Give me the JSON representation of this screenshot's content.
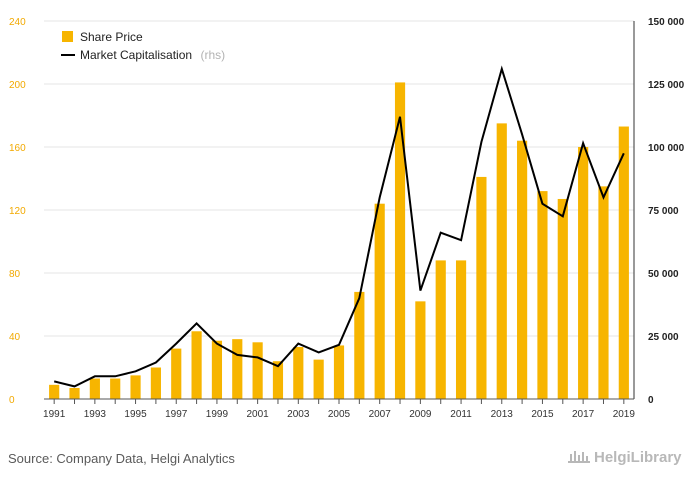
{
  "chart_data": {
    "type": "bar",
    "title": "",
    "xlabel": "",
    "ylabel": "",
    "categories": [
      "1991",
      "1992",
      "1993",
      "1994",
      "1995",
      "1996",
      "1997",
      "1998",
      "1999",
      "2000",
      "2001",
      "2002",
      "2003",
      "2004",
      "2005",
      "2006",
      "2007",
      "2008",
      "2009",
      "2010",
      "2011",
      "2012",
      "2013",
      "2014",
      "2015",
      "2016",
      "2017",
      "2018",
      "2019"
    ],
    "x_tick_labels": [
      "1991",
      "1993",
      "1995",
      "1997",
      "1999",
      "2001",
      "2003",
      "2005",
      "2007",
      "2009",
      "2011",
      "2013",
      "2015",
      "2017",
      "2019"
    ],
    "series": [
      {
        "name": "Share Price",
        "type": "bar",
        "axis": "left",
        "color": "#f7b500",
        "values": [
          9,
          7,
          13,
          13,
          15,
          20,
          32,
          43,
          37,
          38,
          36,
          24,
          33,
          25,
          34,
          68,
          124,
          201,
          62,
          88,
          88,
          141,
          175,
          164,
          132,
          127,
          160,
          135,
          173
        ]
      },
      {
        "name": "Market Capitalisation",
        "name_suffix": "(rhs)",
        "type": "line",
        "axis": "right",
        "color": "#000000",
        "values": [
          7000,
          5000,
          9000,
          9000,
          11000,
          14500,
          22000,
          30000,
          22000,
          17500,
          16500,
          13000,
          22000,
          18500,
          21500,
          40000,
          80000,
          112000,
          43000,
          66000,
          63000,
          102000,
          131000,
          105000,
          77500,
          72500,
          101500,
          80000,
          97500
        ]
      }
    ],
    "y_left": {
      "min": 0,
      "max": 240,
      "ticks": [
        "0",
        "40",
        "80",
        "120",
        "160",
        "200",
        "240"
      ]
    },
    "y_right": {
      "min": 0,
      "max": 150000,
      "ticks": [
        "0",
        "25 000",
        "50 000",
        "75 000",
        "100 000",
        "125 000",
        "150 000"
      ]
    },
    "grid": true,
    "legend_position": "top-left"
  },
  "footer": {
    "source": "Source: Company Data, Helgi Analytics",
    "brand": "HelgiLibrary"
  }
}
